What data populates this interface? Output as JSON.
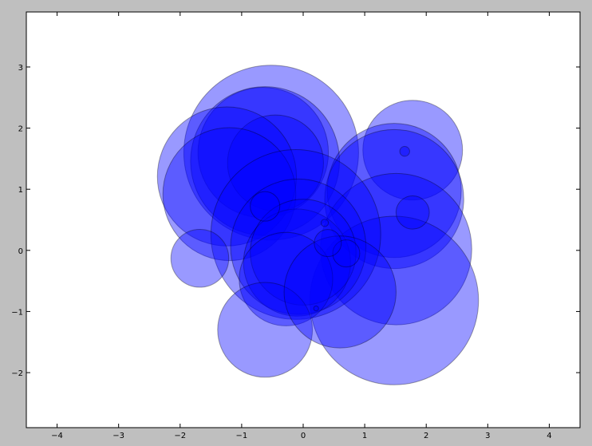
{
  "chart_data": {
    "type": "scatter",
    "title": "",
    "xlabel": "",
    "ylabel": "",
    "xlim": [
      -4.5,
      4.5
    ],
    "ylim": [
      -2.9,
      3.9
    ],
    "xticks": [
      -4,
      -3,
      -2,
      -1,
      0,
      1,
      2,
      3,
      4
    ],
    "yticks": [
      -2,
      -1,
      0,
      1,
      2,
      3
    ],
    "xtick_labels": [
      "−4",
      "−3",
      "−2",
      "−1",
      "0",
      "1",
      "2",
      "3",
      "4"
    ],
    "ytick_labels": [
      "−2",
      "−1",
      "0",
      "1",
      "2",
      "3"
    ],
    "grid": false,
    "marker_color": "#0000ff",
    "marker_alpha": 0.4,
    "edge_color": "#000000",
    "background_color": "#ffffff",
    "figure_color": "#bfbfbf",
    "points": [
      {
        "x": -0.52,
        "y": 1.6,
        "r": 1.42
      },
      {
        "x": -0.65,
        "y": 1.6,
        "r": 1.06
      },
      {
        "x": -0.62,
        "y": 1.46,
        "r": 1.21
      },
      {
        "x": -0.45,
        "y": 1.43,
        "r": 0.78
      },
      {
        "x": -1.24,
        "y": 1.21,
        "r": 1.13
      },
      {
        "x": -1.2,
        "y": 0.92,
        "r": 1.08
      },
      {
        "x": 1.78,
        "y": 1.64,
        "r": 0.81
      },
      {
        "x": 1.48,
        "y": 0.98,
        "r": 1.09
      },
      {
        "x": 1.48,
        "y": 0.84,
        "r": 1.13
      },
      {
        "x": 1.51,
        "y": 0.02,
        "r": 1.23
      },
      {
        "x": 1.48,
        "y": -0.82,
        "r": 1.37
      },
      {
        "x": -0.12,
        "y": 0.26,
        "r": 1.38
      },
      {
        "x": -0.08,
        "y": 0.06,
        "r": 1.1
      },
      {
        "x": -0.1,
        "y": -0.2,
        "r": 0.87
      },
      {
        "x": 0.0,
        "y": -0.03,
        "r": 0.86
      },
      {
        "x": -0.28,
        "y": -0.47,
        "r": 0.76
      },
      {
        "x": -0.62,
        "y": -1.3,
        "r": 0.77
      },
      {
        "x": 0.6,
        "y": -0.68,
        "r": 0.91
      },
      {
        "x": -1.68,
        "y": -0.13,
        "r": 0.47
      },
      {
        "x": 0.7,
        "y": -0.05,
        "r": 0.22
      },
      {
        "x": 0.4,
        "y": 0.12,
        "r": 0.22
      },
      {
        "x": -0.62,
        "y": 0.72,
        "r": 0.24
      },
      {
        "x": 1.78,
        "y": 0.62,
        "r": 0.27
      },
      {
        "x": 1.65,
        "y": 1.62,
        "r": 0.08
      },
      {
        "x": 0.21,
        "y": -0.95,
        "r": 0.04
      },
      {
        "x": 0.35,
        "y": 0.45,
        "r": 0.06
      }
    ]
  }
}
